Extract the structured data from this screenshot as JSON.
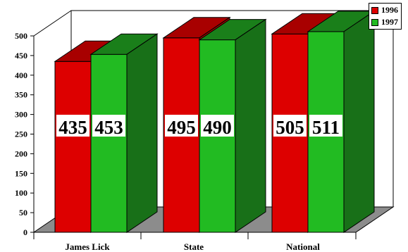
{
  "chart_data": {
    "type": "bar",
    "categories": [
      "James Lick",
      "State",
      "National"
    ],
    "series": [
      {
        "name": "1996",
        "values": [
          435,
          495,
          505
        ],
        "color": "#dd0000"
      },
      {
        "name": "1997",
        "values": [
          453,
          490,
          511
        ],
        "color": "#22bb22"
      }
    ],
    "data_labels": [
      "435",
      "453",
      "495",
      "490",
      "505",
      "511"
    ],
    "ylim": [
      0,
      500
    ],
    "yticks": [
      0,
      50,
      100,
      150,
      200,
      250,
      300,
      350,
      400,
      450,
      500
    ],
    "grid": false,
    "legend_position": "top-right",
    "style": "3d-bar"
  }
}
